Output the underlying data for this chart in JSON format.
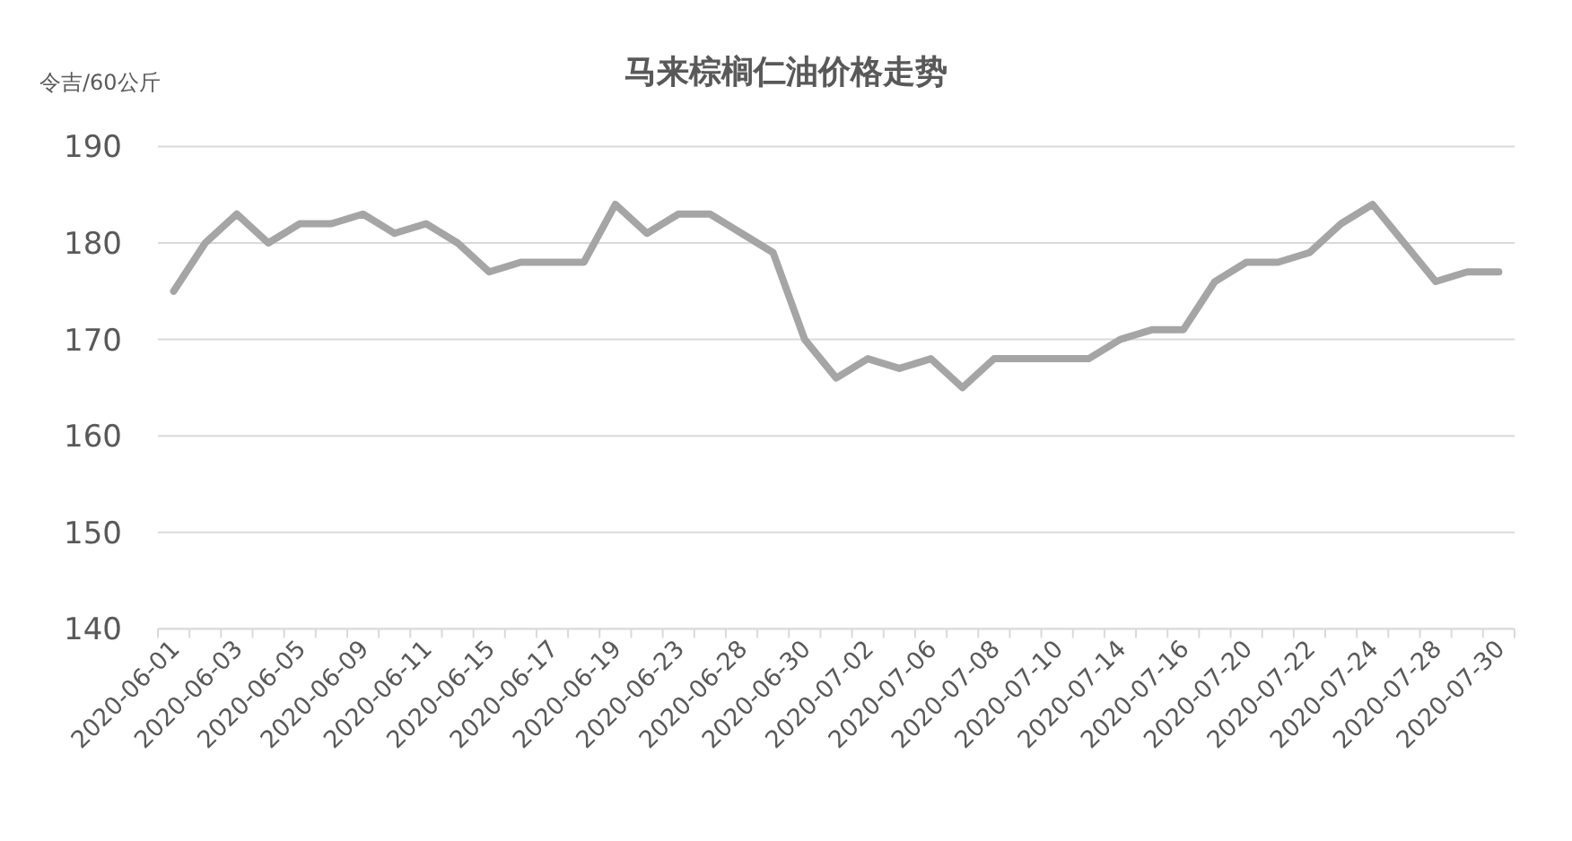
{
  "chart_data": {
    "type": "line",
    "title": "马来棕榈仁油价格走势",
    "ylabel": "令吉/60公斤",
    "categories": [
      "2020-06-01",
      null,
      "2020-06-03",
      null,
      "2020-06-05",
      null,
      "2020-06-09",
      null,
      "2020-06-11",
      null,
      "2020-06-15",
      null,
      "2020-06-17",
      null,
      "2020-06-19",
      null,
      "2020-06-23",
      null,
      "2020-06-28",
      null,
      "2020-06-30",
      null,
      "2020-07-02",
      null,
      "2020-07-06",
      null,
      "2020-07-08",
      null,
      "2020-07-10",
      null,
      "2020-07-14",
      null,
      "2020-07-16",
      null,
      "2020-07-20",
      null,
      "2020-07-22",
      null,
      "2020-07-24",
      null,
      "2020-07-28",
      null,
      "2020-07-30"
    ],
    "series": [
      {
        "color": "#a5a5a5",
        "values": [
          175,
          180,
          183,
          180,
          182,
          182,
          183,
          181,
          182,
          180,
          177,
          178,
          178,
          178,
          184,
          181,
          183,
          183,
          181,
          179,
          170,
          166,
          168,
          167,
          168,
          165,
          168,
          168,
          168,
          168,
          170,
          171,
          171,
          176,
          178,
          178,
          179,
          182,
          184,
          180,
          176,
          177,
          177
        ]
      }
    ],
    "ylim": [
      140,
      190
    ],
    "yticks": [
      140,
      150,
      160,
      170,
      180,
      190
    ],
    "grid": "y",
    "marker": "none",
    "line_style": "solid"
  }
}
